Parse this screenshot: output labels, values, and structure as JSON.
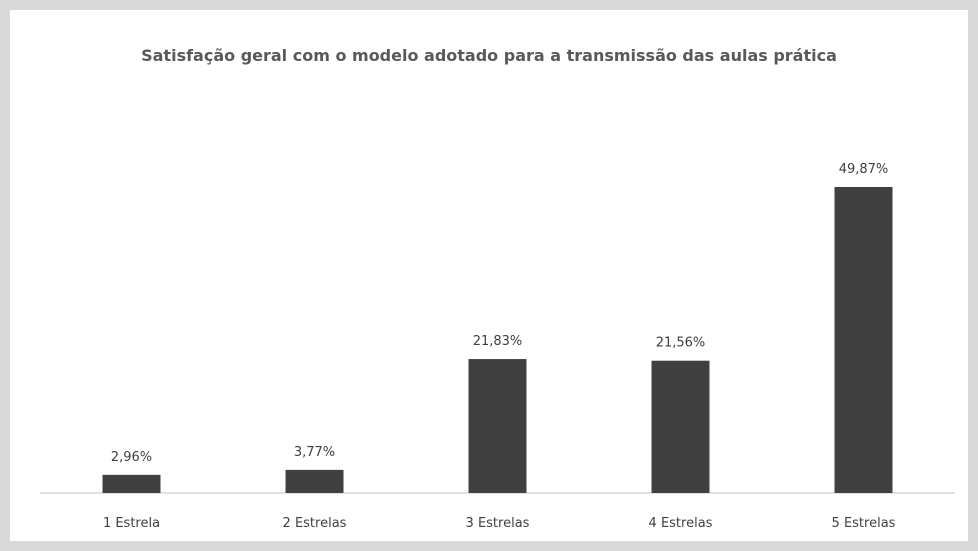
{
  "chart_data": {
    "type": "bar",
    "title": "Satisfação geral com o modelo adotado para a transmissão das aulas prática",
    "categories": [
      "1 Estrela",
      "2 Estrelas",
      "3 Estrelas",
      "4 Estrelas",
      "5 Estrelas"
    ],
    "values": [
      2.96,
      3.77,
      21.83,
      21.56,
      49.87
    ],
    "value_labels": [
      "2,96%",
      "3,77%",
      "21,83%",
      "21,56%",
      "49,87%"
    ],
    "color": "#404040"
  }
}
